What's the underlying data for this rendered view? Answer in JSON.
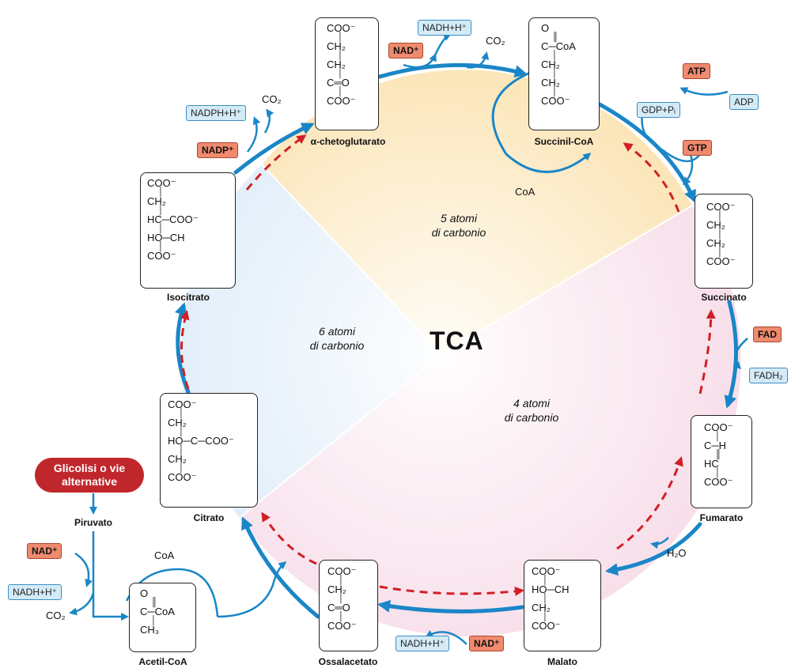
{
  "center_label": "TCA",
  "regions": {
    "five": {
      "line1": "5 atomi",
      "line2": "di carbonio"
    },
    "six": {
      "line1": "6 atomi",
      "line2": "di carbonio"
    },
    "four": {
      "line1": "4 atomi",
      "line2": "di carbonio"
    }
  },
  "colors": {
    "arrow_blue": "#1a86c7",
    "dashed_red": "#d11f26",
    "sector_5c": "#fbe3b2",
    "sector_6c": "#dcebf8",
    "sector_4c": "#f7dde9",
    "tag_red": "#ef8a6e",
    "tag_blue": "#d4ebf7"
  },
  "molecules": {
    "akg": {
      "name": "α-chetoglutarato",
      "lines": [
        "COO⁻",
        "│",
        "CH₂",
        "│",
        "CH₂",
        "│",
        "C═O",
        "│",
        "COO⁻"
      ]
    },
    "succoa": {
      "name": "Succinil-CoA",
      "lines": [
        "O",
        "║",
        "C─CoA",
        "│",
        "CH₂",
        "│",
        "CH₂",
        "│",
        "COO⁻"
      ]
    },
    "succ": {
      "name": "Succinato",
      "lines": [
        "COO⁻",
        "│",
        "CH₂",
        "│",
        "CH₂",
        "│",
        "COO⁻"
      ]
    },
    "fum": {
      "name": "Fumarato",
      "lines": [
        "COO⁻",
        "│",
        "C─H",
        "║",
        "HC",
        "│",
        "COO⁻"
      ]
    },
    "mal": {
      "name": "Malato",
      "lines": [
        "COO⁻",
        "│",
        "HO─CH",
        "│",
        "CH₂",
        "│",
        "COO⁻"
      ]
    },
    "oaa": {
      "name": "Ossalacetato",
      "lines": [
        "COO⁻",
        "│",
        "CH₂",
        "│",
        "C═O",
        "│",
        "COO⁻"
      ]
    },
    "acoa": {
      "name": "Acetil-CoA",
      "lines": [
        "O",
        "║",
        "C─CoA",
        "│",
        "CH₃"
      ]
    },
    "cit": {
      "name": "Citrato",
      "lines": [
        "COO⁻",
        "│",
        "CH₂",
        "│",
        "HO─C─COO⁻",
        "│",
        "CH₂",
        "│",
        "COO⁻"
      ]
    },
    "iso": {
      "name": "Isocitrato",
      "lines": [
        "COO⁻",
        "│",
        "CH₂",
        "│",
        "HC─COO⁻",
        "│",
        "HO─CH",
        "│",
        "COO⁻"
      ]
    }
  },
  "cofactors": {
    "nadh_top": "NADH+H⁺",
    "nad_top": "NAD⁺",
    "co2_top": "CO₂",
    "nadph": "NADPH+H⁺",
    "co2_iso": "CO₂",
    "nadp": "NADP⁺",
    "coa_succ": "CoA",
    "atp": "ATP",
    "adp": "ADP",
    "gdp": "GDP+Pᵢ",
    "gtp": "GTP",
    "fad": "FAD",
    "fadh2": "FADH₂",
    "h2o": "H₂O",
    "nadh_bottom": "NADH+H⁺",
    "nad_bottom": "NAD⁺",
    "coa_acetyl": "CoA",
    "nad_left": "NAD⁺",
    "nadh_left": "NADH+H⁺",
    "co2_left": "CO₂"
  },
  "glycolysis": {
    "line1": "Glicolisi o vie",
    "line2": "alternative"
  },
  "pyruvate": "Piruvato"
}
